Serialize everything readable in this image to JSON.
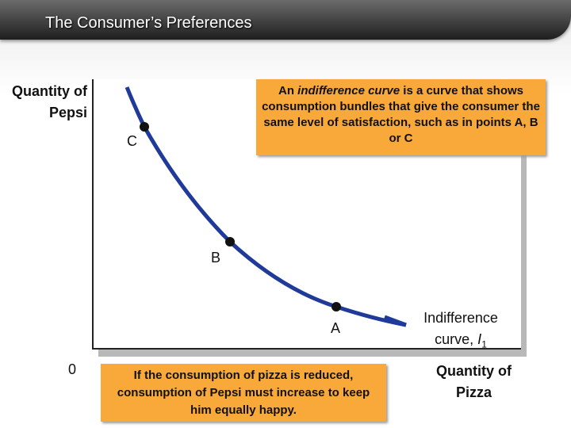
{
  "header": {
    "title": "The Consumer’s Preferences"
  },
  "axes": {
    "y_label": "Quantity of Pepsi",
    "x_label": "Quantity of Pizza",
    "origin": "0"
  },
  "points": [
    {
      "label": "A"
    },
    {
      "label": "B"
    },
    {
      "label": "C"
    }
  ],
  "curve_label": {
    "text": "Indifference curve,",
    "symbol": "I",
    "subscript": "1"
  },
  "top_note": {
    "before": "An ",
    "emphasis": "indifference curve",
    "after": " is a curve that shows consumption bundles that give the consumer the same level of satisfaction, such as in points A, B or C"
  },
  "bottom_note": {
    "text": "If the consumption of pizza is reduced, consumption of Pepsi must increase to keep him equally happy."
  }
}
